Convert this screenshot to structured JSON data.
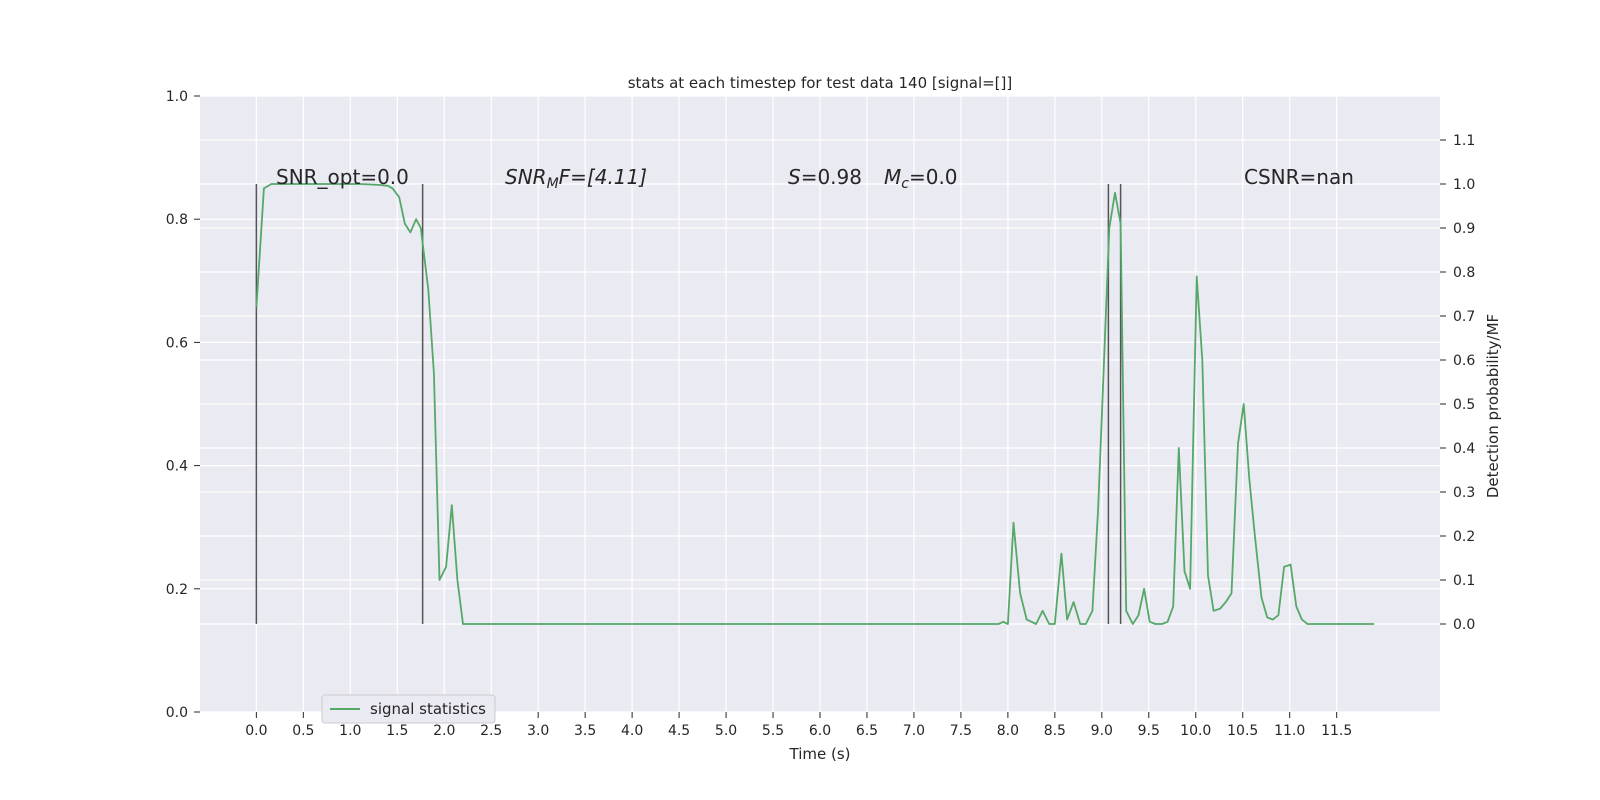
{
  "chart_data": {
    "type": "line",
    "title": "stats at each timestep for test data 140 [signal=[]]",
    "xlabel": "Time (s)",
    "ylabel": "",
    "y2label": "Detection probability/MF",
    "xlim": [
      -0.6,
      12.6
    ],
    "ylim": [
      0,
      1.0
    ],
    "y2lim": [
      -0.2,
      1.2
    ],
    "grid": true,
    "legend_position": "lower-left",
    "x_ticks": [
      "0.0",
      "0.5",
      "1.0",
      "1.5",
      "2.0",
      "2.5",
      "3.0",
      "3.5",
      "4.0",
      "4.5",
      "5.0",
      "5.5",
      "6.0",
      "6.5",
      "7.0",
      "7.5",
      "8.0",
      "8.5",
      "9.0",
      "9.5",
      "10.0",
      "10.5",
      "11.0",
      "11.5"
    ],
    "y_ticks": [
      "0.0",
      "0.2",
      "0.4",
      "0.6",
      "0.8",
      "1.0"
    ],
    "y2_ticks": [
      "0.0",
      "0.1",
      "0.2",
      "0.3",
      "0.4",
      "0.5",
      "0.6",
      "0.7",
      "0.8",
      "0.9",
      "1.0",
      "1.1"
    ],
    "annotations": [
      {
        "id": "snr-opt",
        "text": "SNR_opt=0.0"
      },
      {
        "id": "snr-mf",
        "prefix": "SNR",
        "sub": "M",
        "suffix": "F=[4.11]"
      },
      {
        "id": "s-val",
        "prefix": "S",
        "suffix": "=0.98"
      },
      {
        "id": "mc-val",
        "prefix": "M",
        "sub": "c",
        "suffix": "=0.0"
      },
      {
        "id": "csnr",
        "text": "CSNR=nan"
      }
    ],
    "vlines": [
      0.0,
      1.77,
      9.07,
      9.2
    ],
    "vline_range": [
      0.0,
      1.0
    ],
    "series": [
      {
        "name": "signal statistics",
        "color": "#55a868",
        "axis": "right",
        "x": [
          0.0,
          0.08,
          0.16,
          0.3,
          0.5,
          0.8,
          1.1,
          1.3,
          1.4,
          1.45,
          1.52,
          1.58,
          1.64,
          1.7,
          1.75,
          1.83,
          1.89,
          1.95,
          2.02,
          2.08,
          2.14,
          2.2,
          2.3,
          2.5,
          3.0,
          4.0,
          5.0,
          6.0,
          7.0,
          7.5,
          7.9,
          7.95,
          8.0,
          8.06,
          8.13,
          8.2,
          8.3,
          8.37,
          8.44,
          8.5,
          8.57,
          8.63,
          8.7,
          8.77,
          8.83,
          8.9,
          8.96,
          9.02,
          9.08,
          9.14,
          9.2,
          9.26,
          9.33,
          9.39,
          9.45,
          9.51,
          9.57,
          9.64,
          9.7,
          9.76,
          9.82,
          9.88,
          9.94,
          10.01,
          10.07,
          10.13,
          10.19,
          10.26,
          10.32,
          10.38,
          10.45,
          10.51,
          10.57,
          10.63,
          10.7,
          10.76,
          10.82,
          10.88,
          10.94,
          11.01,
          11.07,
          11.13,
          11.19,
          11.25,
          11.32,
          11.5,
          11.9
        ],
        "y": [
          0.72,
          0.99,
          1.0,
          1.0,
          1.0,
          1.0,
          1.0,
          0.998,
          0.996,
          0.99,
          0.97,
          0.91,
          0.89,
          0.92,
          0.9,
          0.76,
          0.57,
          0.1,
          0.13,
          0.27,
          0.1,
          0.0,
          0.0,
          0.0,
          0.0,
          0.0,
          0.0,
          0.0,
          0.0,
          0.0,
          0.0,
          0.005,
          0.0,
          0.23,
          0.07,
          0.01,
          0.0,
          0.03,
          0.0,
          0.0,
          0.16,
          0.01,
          0.05,
          0.0,
          0.0,
          0.03,
          0.26,
          0.58,
          0.9,
          0.98,
          0.91,
          0.03,
          0.0,
          0.02,
          0.08,
          0.005,
          0.0,
          0.0,
          0.005,
          0.04,
          0.4,
          0.12,
          0.08,
          0.79,
          0.6,
          0.11,
          0.03,
          0.035,
          0.05,
          0.07,
          0.41,
          0.5,
          0.33,
          0.2,
          0.06,
          0.015,
          0.01,
          0.02,
          0.13,
          0.135,
          0.04,
          0.01,
          0.0,
          0.0,
          0.0,
          0.0,
          0.0
        ]
      }
    ]
  }
}
